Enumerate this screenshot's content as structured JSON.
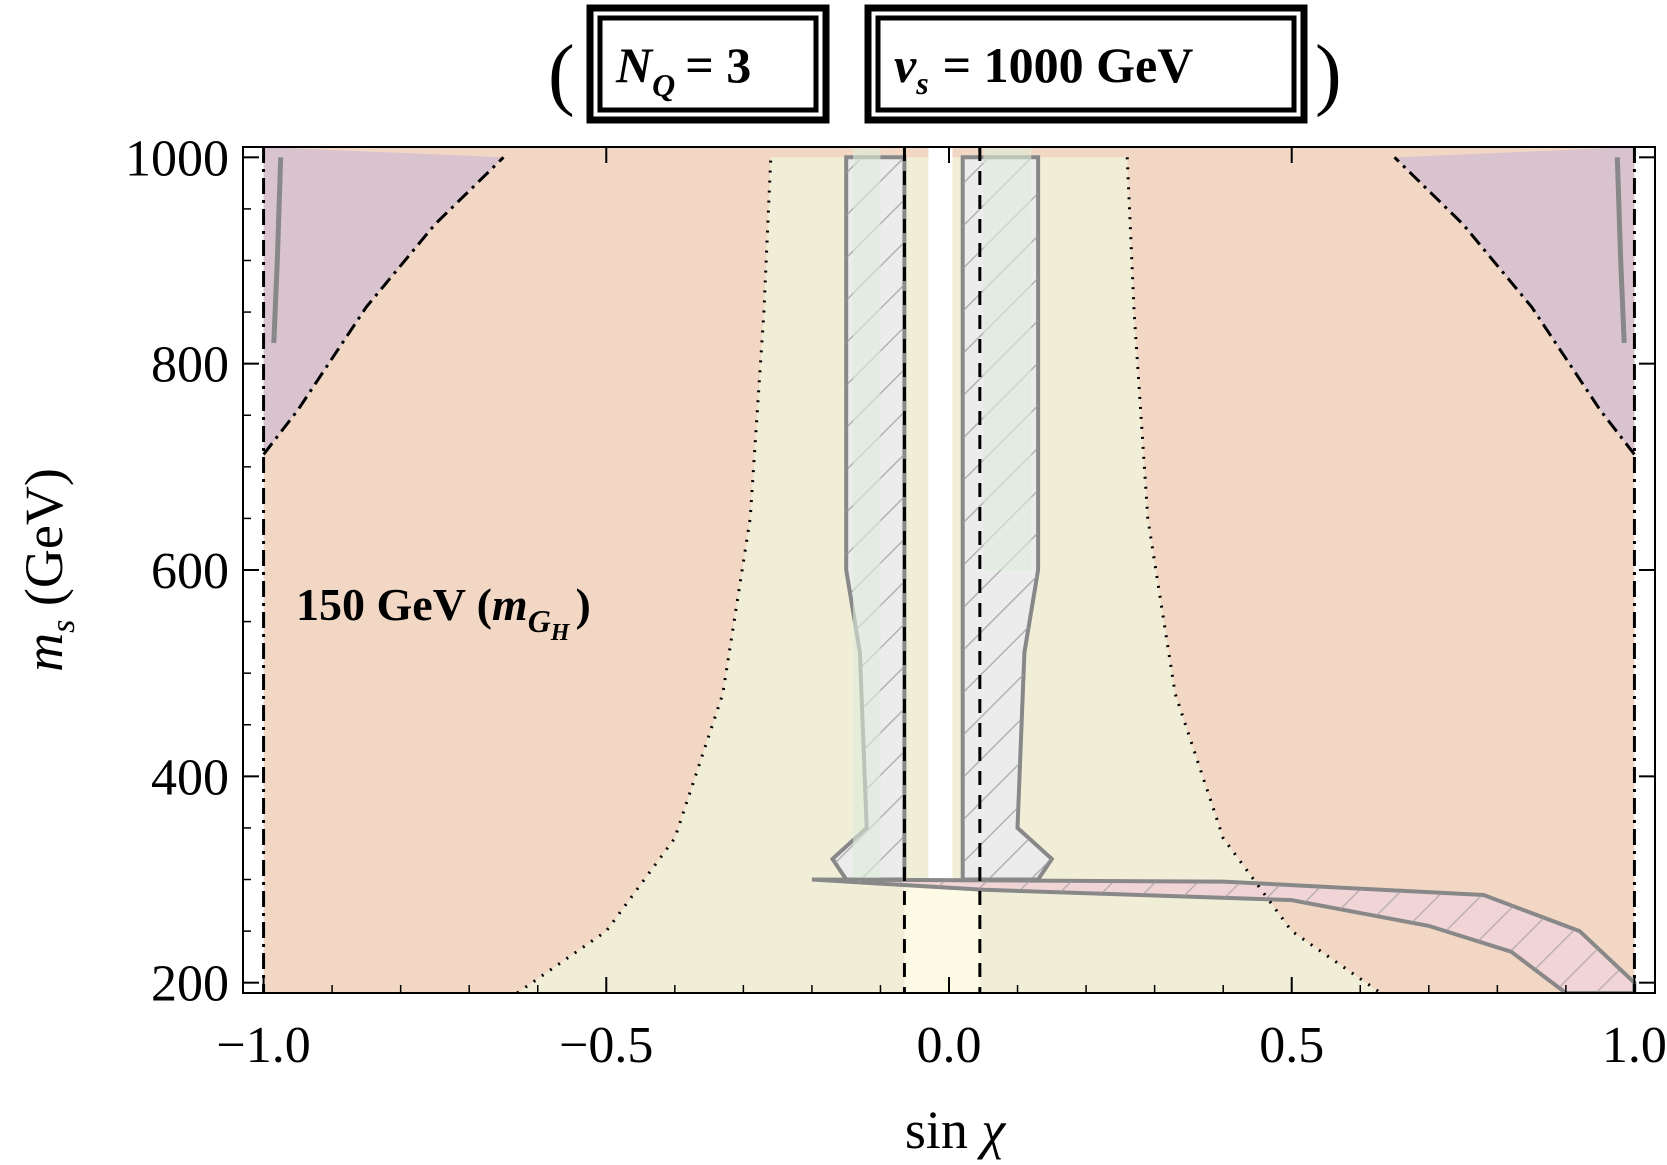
{
  "chart_data": {
    "type": "area",
    "header": {
      "box1": {
        "var": "N",
        "sub": "Q",
        "rest": "= 3"
      },
      "box2": {
        "var": "v",
        "sub": "s",
        "rest": "= 1000 GeV"
      }
    },
    "annotation": {
      "text": "150 GeV (",
      "var": "m",
      "sub": "G",
      "subsub": "H",
      "close": ")"
    },
    "xlabel": {
      "text": "sin ",
      "symbol": "χ"
    },
    "ylabel": {
      "var": "m",
      "sub": "s",
      "rest": " (GeV)"
    },
    "xlim": [
      -1.03,
      1.03
    ],
    "ylim": [
      190,
      1010
    ],
    "xticks": [
      -1.0,
      -0.5,
      0.0,
      0.5,
      1.0
    ],
    "xtick_labels": [
      "−1.0",
      "−0.5",
      "0.0",
      "0.5",
      "1.0"
    ],
    "yticks": [
      200,
      400,
      600,
      800,
      1000
    ],
    "ytick_labels": [
      "200",
      "400",
      "600",
      "800",
      "1000"
    ],
    "colors": {
      "orange_region": "#f2d8c4",
      "purple_region": "#d9c3cf",
      "yellow_region": "#f1eed8",
      "pale_yellow": "#fdfbe6",
      "green_band": "#dcedd8",
      "grey_band": "#ececec",
      "pink_region": "#f1d4d6",
      "contour": "#888888"
    },
    "vertical_dashed_x": [
      -0.065,
      0.045
    ],
    "vertical_dashdot_x": [
      -1.0,
      1.0
    ],
    "purple_boundary": [
      [
        -1.0,
        712
      ],
      [
        -0.95,
        755
      ],
      [
        -0.85,
        855
      ],
      [
        -0.75,
        935
      ],
      [
        -0.65,
        1000
      ]
    ],
    "dotted_boundary_left": [
      [
        -0.63,
        190
      ],
      [
        -0.5,
        250
      ],
      [
        -0.4,
        340
      ],
      [
        -0.33,
        480
      ],
      [
        -0.29,
        650
      ],
      [
        -0.27,
        850
      ],
      [
        -0.26,
        1000
      ]
    ],
    "bands": [
      {
        "name": "left-excluded-band",
        "x_outer": -0.15,
        "x_inner": -0.065,
        "y_low": 300,
        "y_high": 1000
      },
      {
        "name": "right-excluded-band",
        "x_outer": 0.13,
        "x_inner": 0.02,
        "y_low": 300,
        "y_high": 1000
      }
    ],
    "low_mass_strip": {
      "x": [
        -0.2,
        0.78,
        0.92,
        1.0
      ],
      "y": [
        300,
        285,
        250,
        200
      ]
    }
  }
}
